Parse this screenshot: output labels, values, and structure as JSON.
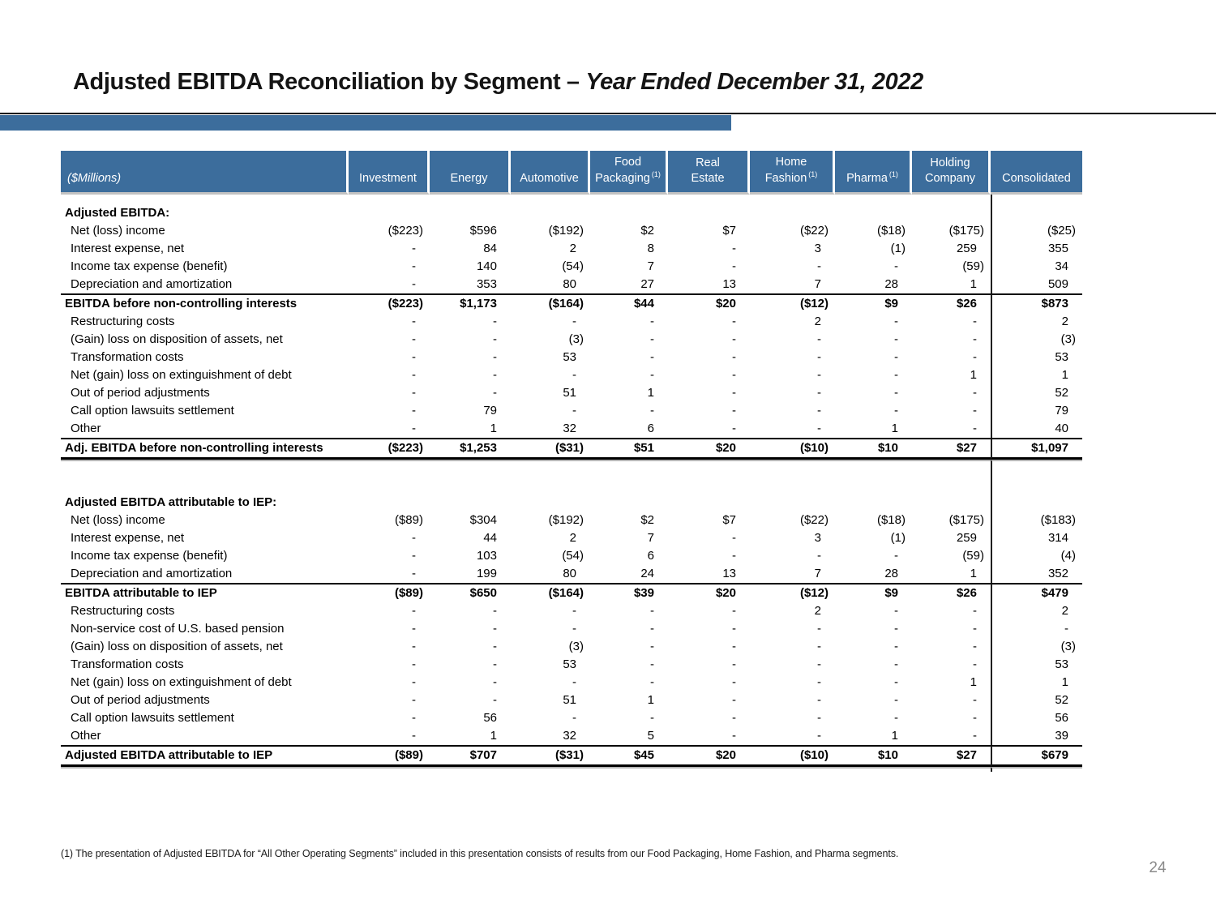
{
  "slide": {
    "title_main": "Adjusted EBITDA Reconciliation by Segment – ",
    "title_italic": "Year Ended December 31, 2022",
    "footnote": "(1) The presentation of Adjusted EBITDA for “All Other Operating Segments” included in this presentation consists of results from our Food Packaging, Home Fashion, and Pharma segments.",
    "page_number": "24"
  },
  "colors": {
    "header_blue": "#3C6D9C",
    "accent_bar_blue": "#3C6D9C",
    "rule_black": "#000000",
    "shadow_gray": "#b5b5b5",
    "page_number_gray": "#8a8a8a"
  },
  "table": {
    "unit_label": "($Millions)",
    "columns": [
      {
        "lines": [
          "Investment"
        ],
        "sup": ""
      },
      {
        "lines": [
          "Energy"
        ],
        "sup": ""
      },
      {
        "lines": [
          "Automotive"
        ],
        "sup": ""
      },
      {
        "lines": [
          "Food",
          "Packaging"
        ],
        "sup": "(1)"
      },
      {
        "lines": [
          "Real",
          "Estate"
        ],
        "sup": ""
      },
      {
        "lines": [
          "Home",
          "Fashion"
        ],
        "sup": "(1)"
      },
      {
        "lines": [
          "Pharma"
        ],
        "sup": "(1)"
      },
      {
        "lines": [
          "Holding",
          "Company"
        ],
        "sup": ""
      },
      {
        "lines": [
          "Consolidated"
        ],
        "sup": ""
      }
    ],
    "sections": [
      {
        "heading": "Adjusted EBITDA:",
        "rows": [
          {
            "label": "Net (loss) income",
            "style": "normal",
            "values": [
              "($223)",
              "$596",
              "($192)",
              "$2",
              "$7",
              "($22)",
              "($18)",
              "($175)",
              "($25)"
            ]
          },
          {
            "label": "Interest expense, net",
            "style": "normal",
            "values": [
              "-",
              "84",
              "2",
              "8",
              "-",
              "3",
              "(1)",
              "259",
              "355"
            ]
          },
          {
            "label": "Income tax expense (benefit)",
            "style": "normal",
            "values": [
              "-",
              "140",
              "(54)",
              "7",
              "-",
              "-",
              "-",
              "(59)",
              "34"
            ]
          },
          {
            "label": "Depreciation and amortization",
            "style": "normal",
            "values": [
              "-",
              "353",
              "80",
              "27",
              "13",
              "7",
              "28",
              "1",
              "509"
            ]
          },
          {
            "label": "EBITDA before non-controlling interests",
            "style": "total",
            "values": [
              "($223)",
              "$1,173",
              "($164)",
              "$44",
              "$20",
              "($12)",
              "$9",
              "$26",
              "$873"
            ]
          },
          {
            "label": "Restructuring costs",
            "style": "normal",
            "values": [
              "-",
              "-",
              "-",
              "-",
              "-",
              "2",
              "-",
              "-",
              "2"
            ]
          },
          {
            "label": "(Gain) loss on disposition of assets, net",
            "style": "normal",
            "values": [
              "-",
              "-",
              "(3)",
              "-",
              "-",
              "-",
              "-",
              "-",
              "(3)"
            ]
          },
          {
            "label": "Transformation costs",
            "style": "normal",
            "values": [
              "-",
              "-",
              "53",
              "-",
              "-",
              "-",
              "-",
              "-",
              "53"
            ]
          },
          {
            "label": "Net (gain) loss on extinguishment of debt",
            "style": "normal",
            "values": [
              "-",
              "-",
              "-",
              "-",
              "-",
              "-",
              "-",
              "1",
              "1"
            ]
          },
          {
            "label": "Out of period adjustments",
            "style": "normal",
            "values": [
              "-",
              "-",
              "51",
              "1",
              "-",
              "-",
              "-",
              "-",
              "52"
            ]
          },
          {
            "label": "Call option lawsuits settlement",
            "style": "normal",
            "values": [
              "-",
              "79",
              "-",
              "-",
              "-",
              "-",
              "-",
              "-",
              "79"
            ]
          },
          {
            "label": "Other",
            "style": "normal",
            "values": [
              "-",
              "1",
              "32",
              "6",
              "-",
              "-",
              "1",
              "-",
              "40"
            ]
          },
          {
            "label": "Adj. EBITDA before non-controlling interests",
            "style": "grand",
            "values": [
              "($223)",
              "$1,253",
              "($31)",
              "$51",
              "$20",
              "($10)",
              "$10",
              "$27",
              "$1,097"
            ]
          }
        ]
      },
      {
        "heading": "Adjusted EBITDA attributable to IEP:",
        "rows": [
          {
            "label": "Net (loss) income",
            "style": "normal",
            "values": [
              "($89)",
              "$304",
              "($192)",
              "$2",
              "$7",
              "($22)",
              "($18)",
              "($175)",
              "($183)"
            ]
          },
          {
            "label": "Interest expense, net",
            "style": "normal",
            "values": [
              "-",
              "44",
              "2",
              "7",
              "-",
              "3",
              "(1)",
              "259",
              "314"
            ]
          },
          {
            "label": "Income tax expense (benefit)",
            "style": "normal",
            "values": [
              "-",
              "103",
              "(54)",
              "6",
              "-",
              "-",
              "-",
              "(59)",
              "(4)"
            ]
          },
          {
            "label": "Depreciation and amortization",
            "style": "normal",
            "values": [
              "-",
              "199",
              "80",
              "24",
              "13",
              "7",
              "28",
              "1",
              "352"
            ]
          },
          {
            "label": "EBITDA attributable to IEP",
            "style": "total",
            "values": [
              "($89)",
              "$650",
              "($164)",
              "$39",
              "$20",
              "($12)",
              "$9",
              "$26",
              "$479"
            ]
          },
          {
            "label": "Restructuring costs",
            "style": "normal",
            "values": [
              "-",
              "-",
              "-",
              "-",
              "-",
              "2",
              "-",
              "-",
              "2"
            ]
          },
          {
            "label": "Non-service cost of U.S. based pension",
            "style": "normal",
            "values": [
              "-",
              "-",
              "-",
              "-",
              "-",
              "-",
              "-",
              "-",
              "-"
            ]
          },
          {
            "label": "(Gain) loss on disposition of assets, net",
            "style": "normal",
            "values": [
              "-",
              "-",
              "(3)",
              "-",
              "-",
              "-",
              "-",
              "-",
              "(3)"
            ]
          },
          {
            "label": "Transformation costs",
            "style": "normal",
            "values": [
              "-",
              "-",
              "53",
              "-",
              "-",
              "-",
              "-",
              "-",
              "53"
            ]
          },
          {
            "label": "Net (gain) loss on extinguishment of debt",
            "style": "normal",
            "values": [
              "-",
              "-",
              "-",
              "-",
              "-",
              "-",
              "-",
              "1",
              "1"
            ]
          },
          {
            "label": "Out of period adjustments",
            "style": "normal",
            "values": [
              "-",
              "-",
              "51",
              "1",
              "-",
              "-",
              "-",
              "-",
              "52"
            ]
          },
          {
            "label": "Call option lawsuits settlement",
            "style": "normal",
            "values": [
              "-",
              "56",
              "-",
              "-",
              "-",
              "-",
              "-",
              "-",
              "56"
            ]
          },
          {
            "label": "Other",
            "style": "normal",
            "values": [
              "-",
              "1",
              "32",
              "5",
              "-",
              "-",
              "1",
              "-",
              "39"
            ]
          },
          {
            "label": "Adjusted EBITDA attributable to IEP",
            "style": "grand",
            "values": [
              "($89)",
              "$707",
              "($31)",
              "$45",
              "$20",
              "($10)",
              "$10",
              "$27",
              "$679"
            ]
          }
        ]
      }
    ]
  }
}
